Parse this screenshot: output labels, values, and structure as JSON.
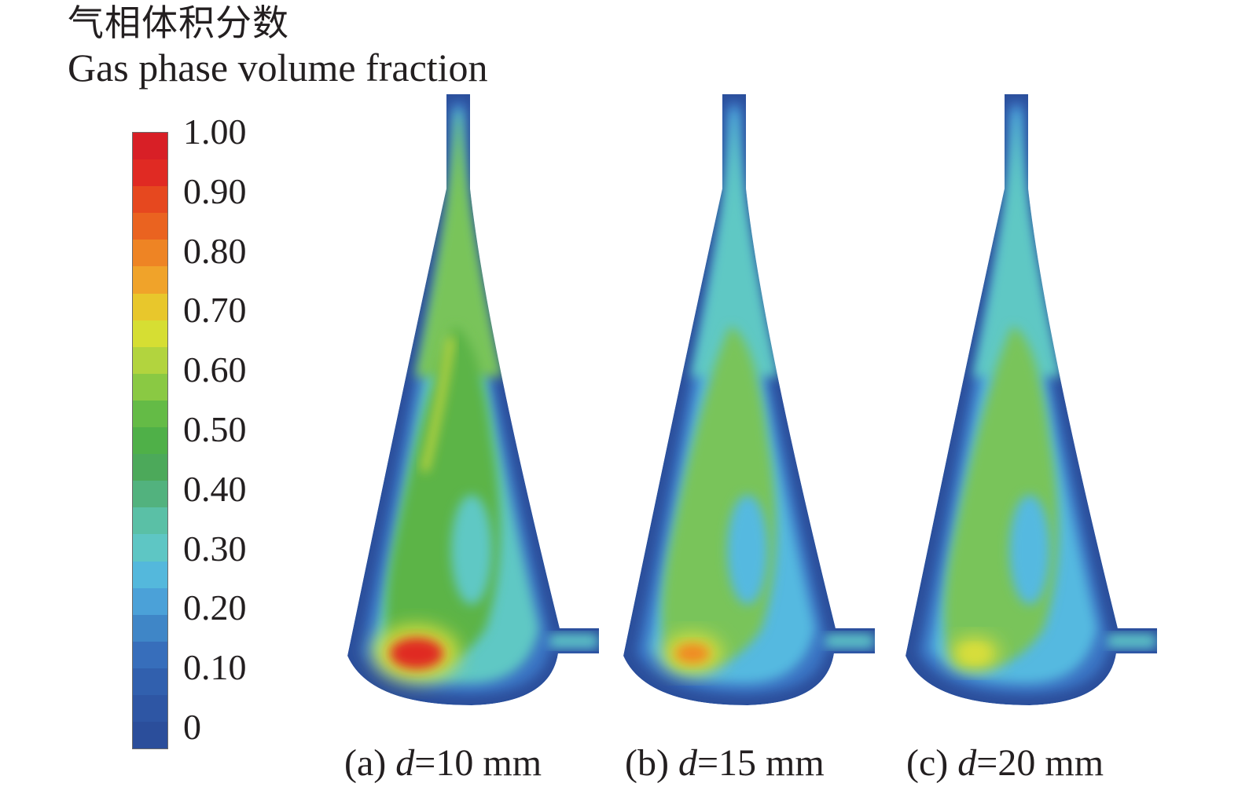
{
  "legend": {
    "title_cn": "气相体积分数",
    "title_en": "Gas phase volume fraction",
    "ticks": [
      "1.00",
      "0.90",
      "0.80",
      "0.70",
      "0.60",
      "0.50",
      "0.40",
      "0.30",
      "0.20",
      "0.10",
      "0"
    ],
    "colorbar_steps_top_to_bottom": [
      "#d81f26",
      "#e02a23",
      "#e6481f",
      "#ea6320",
      "#ee8424",
      "#f0a32a",
      "#e8c72c",
      "#d6de33",
      "#b2d43e",
      "#8ac943",
      "#64bb46",
      "#4fb048",
      "#4ca95a",
      "#52b27e",
      "#5ac0a6",
      "#5ec6c4",
      "#54b8dc",
      "#4ba1d8",
      "#3f86c7",
      "#376ebb",
      "#3160ae",
      "#2e56a4",
      "#2b4e9b"
    ]
  },
  "panels": [
    {
      "label": "(a) ",
      "var": "d",
      "rest": "=10 mm",
      "hotspot_max": 0.9
    },
    {
      "label": "(b) ",
      "var": "d",
      "rest": "=15 mm",
      "hotspot_max": 0.8
    },
    {
      "label": "(c) ",
      "var": "d",
      "rest": "=20 mm",
      "hotspot_max": 0.6
    }
  ],
  "colors": {
    "wall": "#2b4e9b",
    "low": "#3a75c4",
    "sky": "#55b9e0",
    "teal": "#5ec8c4",
    "green_light": "#79c45a",
    "green": "#5cb446",
    "yellow": "#d8de3a",
    "orange": "#f08a22",
    "red": "#e02a23"
  }
}
